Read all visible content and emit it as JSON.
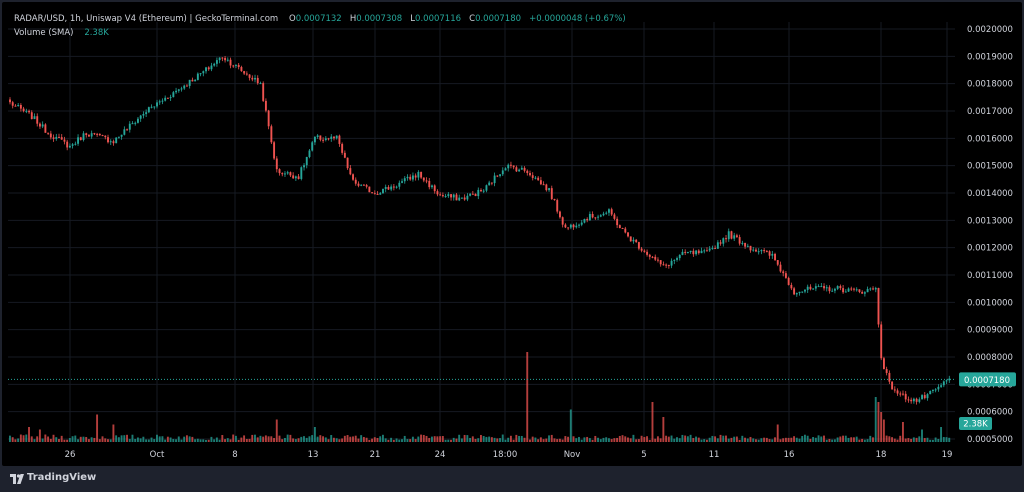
{
  "legend": {
    "pair_title": "RADAR/USD, 1h, Uniswap V4 (Ethereum) | GeckoTerminal.com",
    "ohlc": [
      {
        "key": "O",
        "value": "0.0007132"
      },
      {
        "key": "H",
        "value": "0.0007308"
      },
      {
        "key": "L",
        "value": "0.0007116"
      },
      {
        "key": "C",
        "value": "0.0007180"
      }
    ],
    "change": "+0.0000048 (+0.67%)",
    "volume_label": "Volume (SMA)",
    "volume_value": "2.38K"
  },
  "colors": {
    "up": "#26a69a",
    "down": "#ef5350",
    "background": "#000000",
    "grid": "#161a22",
    "text": "#d1d4dc"
  },
  "footer": {
    "brand": "TradingView",
    "icon": "tradingview-logo-icon"
  },
  "chart_data": {
    "type": "candlestick",
    "title": "RADAR/USD, 1h, Uniswap V4 (Ethereum) | GeckoTerminal.com",
    "ylim": [
      0.0005,
      0.002
    ],
    "yticks": [
      "0.0020000",
      "0.0019000",
      "0.0018000",
      "0.0017000",
      "0.0016000",
      "0.0015000",
      "0.0014000",
      "0.0013000",
      "0.0012000",
      "0.0011000",
      "0.0010000",
      "0.0009000",
      "0.0008000",
      "0.0007000",
      "0.0006000",
      "0.0005000"
    ],
    "xticks": [
      "26",
      "Oct",
      "8",
      "13",
      "21",
      "24",
      "18:00",
      "Nov",
      "5",
      "11",
      "16",
      "18",
      "19"
    ],
    "last_price_label": "0.0007180",
    "volume_badge": "2.38K",
    "anchors": [
      [
        0,
        0.00173
      ],
      [
        8,
        0.00168
      ],
      [
        14,
        0.00162
      ],
      [
        22,
        0.00157
      ],
      [
        28,
        0.00162
      ],
      [
        38,
        0.00159
      ],
      [
        50,
        0.0017
      ],
      [
        62,
        0.00178
      ],
      [
        72,
        0.00185
      ],
      [
        78,
        0.0019
      ],
      [
        86,
        0.00184
      ],
      [
        92,
        0.0018
      ],
      [
        98,
        0.00148
      ],
      [
        106,
        0.00146
      ],
      [
        112,
        0.0016
      ],
      [
        120,
        0.0016
      ],
      [
        126,
        0.00144
      ],
      [
        134,
        0.0014
      ],
      [
        142,
        0.00143
      ],
      [
        150,
        0.00147
      ],
      [
        158,
        0.00139
      ],
      [
        166,
        0.00138
      ],
      [
        174,
        0.00141
      ],
      [
        182,
        0.0015
      ],
      [
        190,
        0.00148
      ],
      [
        198,
        0.00141
      ],
      [
        204,
        0.00127
      ],
      [
        212,
        0.00131
      ],
      [
        220,
        0.00133
      ],
      [
        226,
        0.00125
      ],
      [
        234,
        0.00118
      ],
      [
        240,
        0.00113
      ],
      [
        248,
        0.00118
      ],
      [
        256,
        0.00118
      ],
      [
        264,
        0.00125
      ],
      [
        272,
        0.0012
      ],
      [
        280,
        0.00117
      ],
      [
        288,
        0.00104
      ],
      [
        296,
        0.00105
      ],
      [
        304,
        0.00105
      ],
      [
        312,
        0.00104
      ],
      [
        318,
        0.00105
      ],
      [
        320,
        0.0008
      ],
      [
        323,
        0.0007
      ],
      [
        327,
        0.00066
      ],
      [
        333,
        0.00064
      ],
      [
        339,
        0.00067
      ],
      [
        345,
        0.00072
      ]
    ],
    "n_candles": 346,
    "volume_spikes": [
      {
        "i": 7,
        "v": 0.6
      },
      {
        "i": 11,
        "v": 0.5
      },
      {
        "i": 32,
        "v": 1.1
      },
      {
        "i": 38,
        "v": 0.7
      },
      {
        "i": 98,
        "v": 0.9
      },
      {
        "i": 112,
        "v": 0.6
      },
      {
        "i": 190,
        "v": 3.6
      },
      {
        "i": 206,
        "v": 1.3
      },
      {
        "i": 236,
        "v": 1.6
      },
      {
        "i": 240,
        "v": 1.0
      },
      {
        "i": 282,
        "v": 0.7
      },
      {
        "i": 318,
        "v": 1.8
      },
      {
        "i": 319,
        "v": 1.6
      },
      {
        "i": 320,
        "v": 1.2
      },
      {
        "i": 321,
        "v": 0.9
      },
      {
        "i": 328,
        "v": 0.8
      },
      {
        "i": 335,
        "v": 0.5
      },
      {
        "i": 342,
        "v": 0.6
      }
    ]
  }
}
